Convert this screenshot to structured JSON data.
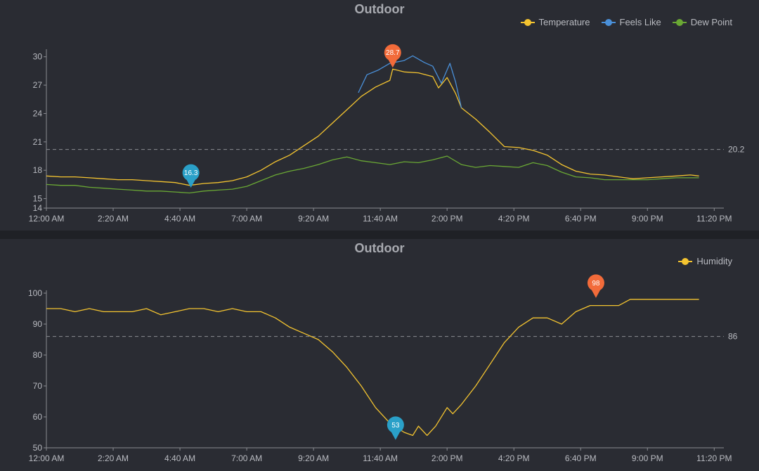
{
  "colors": {
    "background": "#2a2c33",
    "temperature": "#f4c430",
    "feels_like": "#4a90d9",
    "dew_point": "#6aa834",
    "humidity": "#f4c430",
    "max_marker": "#f26b3a",
    "min_marker": "#2aa0c8",
    "axis_text": "#b9bbc1",
    "reference_line": "#8a8c92"
  },
  "chart_data": [
    {
      "type": "line",
      "title": "Outdoor",
      "x_ticks": [
        "12:00 AM",
        "2:20 AM",
        "4:40 AM",
        "7:00 AM",
        "9:20 AM",
        "11:40 AM",
        "2:00 PM",
        "4:20 PM",
        "6:40 PM",
        "9:00 PM",
        "11:20 PM"
      ],
      "x_range_hours": [
        0,
        23.67
      ],
      "ylim": [
        14,
        30.5
      ],
      "y_ticks": [
        30,
        27,
        24,
        21,
        18,
        15,
        14
      ],
      "reference_line": {
        "value": 20.2,
        "label": "20.2"
      },
      "max_marker": {
        "hour": 12.1,
        "value": 28.7,
        "label": "28.7"
      },
      "min_marker": {
        "hour": 5.05,
        "value": 16.3,
        "label": "16.3"
      },
      "series": [
        {
          "name": "Temperature",
          "color": "#f4c430",
          "points": [
            [
              0,
              17.4
            ],
            [
              0.5,
              17.3
            ],
            [
              1,
              17.3
            ],
            [
              1.5,
              17.2
            ],
            [
              2,
              17.1
            ],
            [
              2.5,
              17.0
            ],
            [
              3,
              17.0
            ],
            [
              3.5,
              16.9
            ],
            [
              4,
              16.8
            ],
            [
              4.5,
              16.7
            ],
            [
              5.0,
              16.4
            ],
            [
              5.5,
              16.6
            ],
            [
              6,
              16.7
            ],
            [
              6.5,
              16.9
            ],
            [
              7,
              17.3
            ],
            [
              7.5,
              18.0
            ],
            [
              8,
              18.9
            ],
            [
              8.5,
              19.6
            ],
            [
              9,
              20.6
            ],
            [
              9.5,
              21.6
            ],
            [
              10,
              23.0
            ],
            [
              10.5,
              24.4
            ],
            [
              11,
              25.8
            ],
            [
              11.5,
              26.8
            ],
            [
              12,
              27.5
            ],
            [
              12.1,
              28.7
            ],
            [
              12.5,
              28.4
            ],
            [
              13,
              28.3
            ],
            [
              13.5,
              27.9
            ],
            [
              13.7,
              26.7
            ],
            [
              14,
              27.8
            ],
            [
              14.3,
              26.1
            ],
            [
              14.5,
              24.6
            ],
            [
              15,
              23.4
            ],
            [
              15.5,
              22.0
            ],
            [
              16,
              20.5
            ],
            [
              16.5,
              20.4
            ],
            [
              17,
              20.1
            ],
            [
              17.5,
              19.6
            ],
            [
              18,
              18.6
            ],
            [
              18.5,
              17.9
            ],
            [
              19,
              17.6
            ],
            [
              19.5,
              17.5
            ],
            [
              20,
              17.3
            ],
            [
              20.5,
              17.1
            ],
            [
              21,
              17.2
            ],
            [
              21.5,
              17.3
            ],
            [
              22,
              17.4
            ],
            [
              22.5,
              17.5
            ],
            [
              22.8,
              17.4
            ]
          ]
        },
        {
          "name": "Feels Like",
          "color": "#4a90d9",
          "points": [
            [
              10.9,
              26.2
            ],
            [
              11.2,
              28.1
            ],
            [
              11.6,
              28.6
            ],
            [
              12,
              29.3
            ],
            [
              12.5,
              29.6
            ],
            [
              12.8,
              30.1
            ],
            [
              13.2,
              29.4
            ],
            [
              13.5,
              29.0
            ],
            [
              13.8,
              27.2
            ],
            [
              14.1,
              29.3
            ],
            [
              14.3,
              27.3
            ],
            [
              14.5,
              24.6
            ]
          ]
        },
        {
          "name": "Dew Point",
          "color": "#6aa834",
          "points": [
            [
              0,
              16.5
            ],
            [
              0.5,
              16.4
            ],
            [
              1,
              16.4
            ],
            [
              1.5,
              16.2
            ],
            [
              2,
              16.1
            ],
            [
              2.5,
              16.0
            ],
            [
              3,
              15.9
            ],
            [
              3.5,
              15.8
            ],
            [
              4,
              15.8
            ],
            [
              4.5,
              15.7
            ],
            [
              5,
              15.6
            ],
            [
              5.5,
              15.8
            ],
            [
              6,
              15.9
            ],
            [
              6.5,
              16.0
            ],
            [
              7,
              16.3
            ],
            [
              7.5,
              16.9
            ],
            [
              8,
              17.5
            ],
            [
              8.5,
              17.9
            ],
            [
              9,
              18.2
            ],
            [
              9.5,
              18.6
            ],
            [
              10,
              19.1
            ],
            [
              10.5,
              19.4
            ],
            [
              11,
              19.0
            ],
            [
              11.5,
              18.8
            ],
            [
              12,
              18.6
            ],
            [
              12.5,
              18.9
            ],
            [
              13,
              18.8
            ],
            [
              13.5,
              19.1
            ],
            [
              14,
              19.5
            ],
            [
              14.5,
              18.6
            ],
            [
              15,
              18.3
            ],
            [
              15.5,
              18.5
            ],
            [
              16,
              18.4
            ],
            [
              16.5,
              18.3
            ],
            [
              17,
              18.8
            ],
            [
              17.5,
              18.5
            ],
            [
              18,
              17.8
            ],
            [
              18.5,
              17.3
            ],
            [
              19,
              17.2
            ],
            [
              19.5,
              17.0
            ],
            [
              20,
              17.0
            ],
            [
              20.5,
              17.0
            ],
            [
              21,
              17.0
            ],
            [
              21.5,
              17.1
            ],
            [
              22,
              17.2
            ],
            [
              22.5,
              17.2
            ],
            [
              22.8,
              17.2
            ]
          ]
        }
      ]
    },
    {
      "type": "line",
      "title": "Outdoor",
      "x_ticks": [
        "12:00 AM",
        "2:20 AM",
        "4:40 AM",
        "7:00 AM",
        "9:20 AM",
        "11:40 AM",
        "2:00 PM",
        "4:20 PM",
        "6:40 PM",
        "9:00 PM",
        "11:20 PM"
      ],
      "x_range_hours": [
        0,
        23.67
      ],
      "ylim": [
        50,
        100
      ],
      "y_ticks": [
        100,
        90,
        80,
        70,
        60,
        50
      ],
      "reference_line": {
        "value": 86,
        "label": "86"
      },
      "max_marker": {
        "hour": 19.2,
        "value": 98,
        "label": "98"
      },
      "min_marker": {
        "hour": 12.2,
        "value": 53,
        "label": "53"
      },
      "series": [
        {
          "name": "Humidity",
          "color": "#f4c430",
          "points": [
            [
              0,
              95
            ],
            [
              0.5,
              95
            ],
            [
              1,
              94
            ],
            [
              1.5,
              95
            ],
            [
              2,
              94
            ],
            [
              2.5,
              94
            ],
            [
              3,
              94
            ],
            [
              3.5,
              95
            ],
            [
              4,
              93
            ],
            [
              4.5,
              94
            ],
            [
              5,
              95
            ],
            [
              5.5,
              95
            ],
            [
              6,
              94
            ],
            [
              6.5,
              95
            ],
            [
              7,
              94
            ],
            [
              7.5,
              94
            ],
            [
              8,
              92
            ],
            [
              8.5,
              89
            ],
            [
              9,
              87
            ],
            [
              9.5,
              85
            ],
            [
              10,
              81
            ],
            [
              10.5,
              76
            ],
            [
              11,
              70
            ],
            [
              11.5,
              63
            ],
            [
              12,
              58
            ],
            [
              12.5,
              55
            ],
            [
              12.8,
              54
            ],
            [
              13,
              57
            ],
            [
              13.3,
              54
            ],
            [
              13.6,
              57
            ],
            [
              14,
              63
            ],
            [
              14.2,
              61
            ],
            [
              14.5,
              64
            ],
            [
              15,
              70
            ],
            [
              15.5,
              77
            ],
            [
              16,
              84
            ],
            [
              16.5,
              89
            ],
            [
              17,
              92
            ],
            [
              17.5,
              92
            ],
            [
              18,
              90
            ],
            [
              18.5,
              94
            ],
            [
              19,
              96
            ],
            [
              19.5,
              96
            ],
            [
              20,
              96
            ],
            [
              20.2,
              97
            ],
            [
              20.4,
              98
            ],
            [
              21,
              98
            ],
            [
              21.5,
              98
            ],
            [
              22,
              98
            ],
            [
              22.5,
              98
            ],
            [
              22.8,
              98
            ]
          ]
        }
      ]
    }
  ]
}
